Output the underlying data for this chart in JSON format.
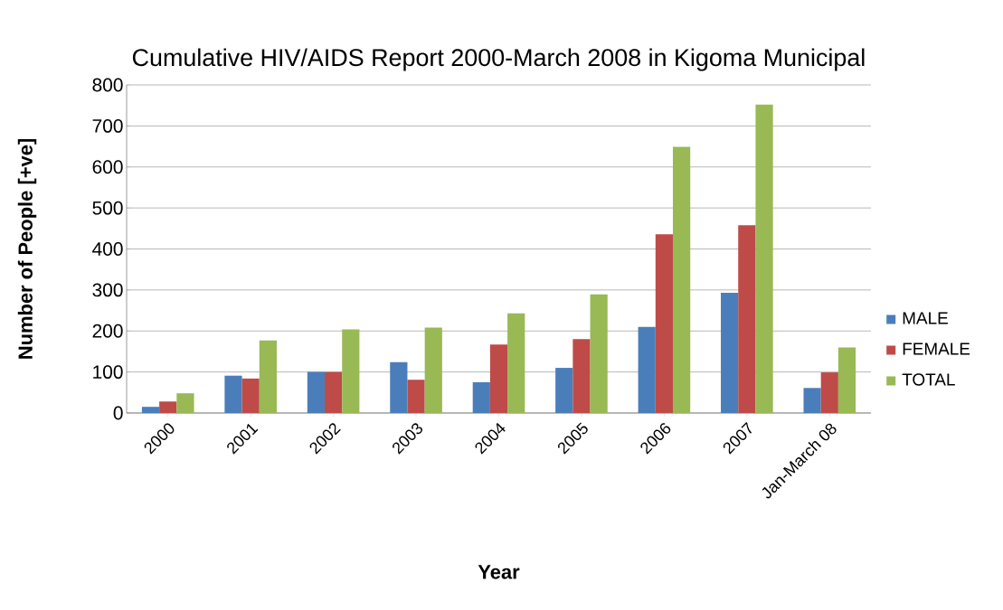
{
  "chart_data": {
    "type": "bar",
    "title": "Cumulative HIV/AIDS Report 2000-March 2008 in Kigoma Municipal",
    "xlabel": "Year",
    "ylabel": "Number of People [+ve]",
    "categories": [
      "2000",
      "2001",
      "2002",
      "2003",
      "2004",
      "2005",
      "2006",
      "2007",
      "Jan-March 08"
    ],
    "series": [
      {
        "name": "MALE",
        "color": "#4a7ebb",
        "values": [
          15,
          91,
          100,
          124,
          75,
          110,
          210,
          293,
          61
        ]
      },
      {
        "name": "FEMALE",
        "color": "#be4b48",
        "values": [
          28,
          84,
          100,
          81,
          167,
          180,
          436,
          458,
          99
        ]
      },
      {
        "name": "TOTAL",
        "color": "#98b954",
        "values": [
          48,
          177,
          204,
          208,
          243,
          289,
          649,
          752,
          160
        ]
      }
    ],
    "ylim": [
      0,
      800
    ],
    "yticks": [
      0,
      100,
      200,
      300,
      400,
      500,
      600,
      700,
      800
    ],
    "grid": "y",
    "legend": "right"
  }
}
